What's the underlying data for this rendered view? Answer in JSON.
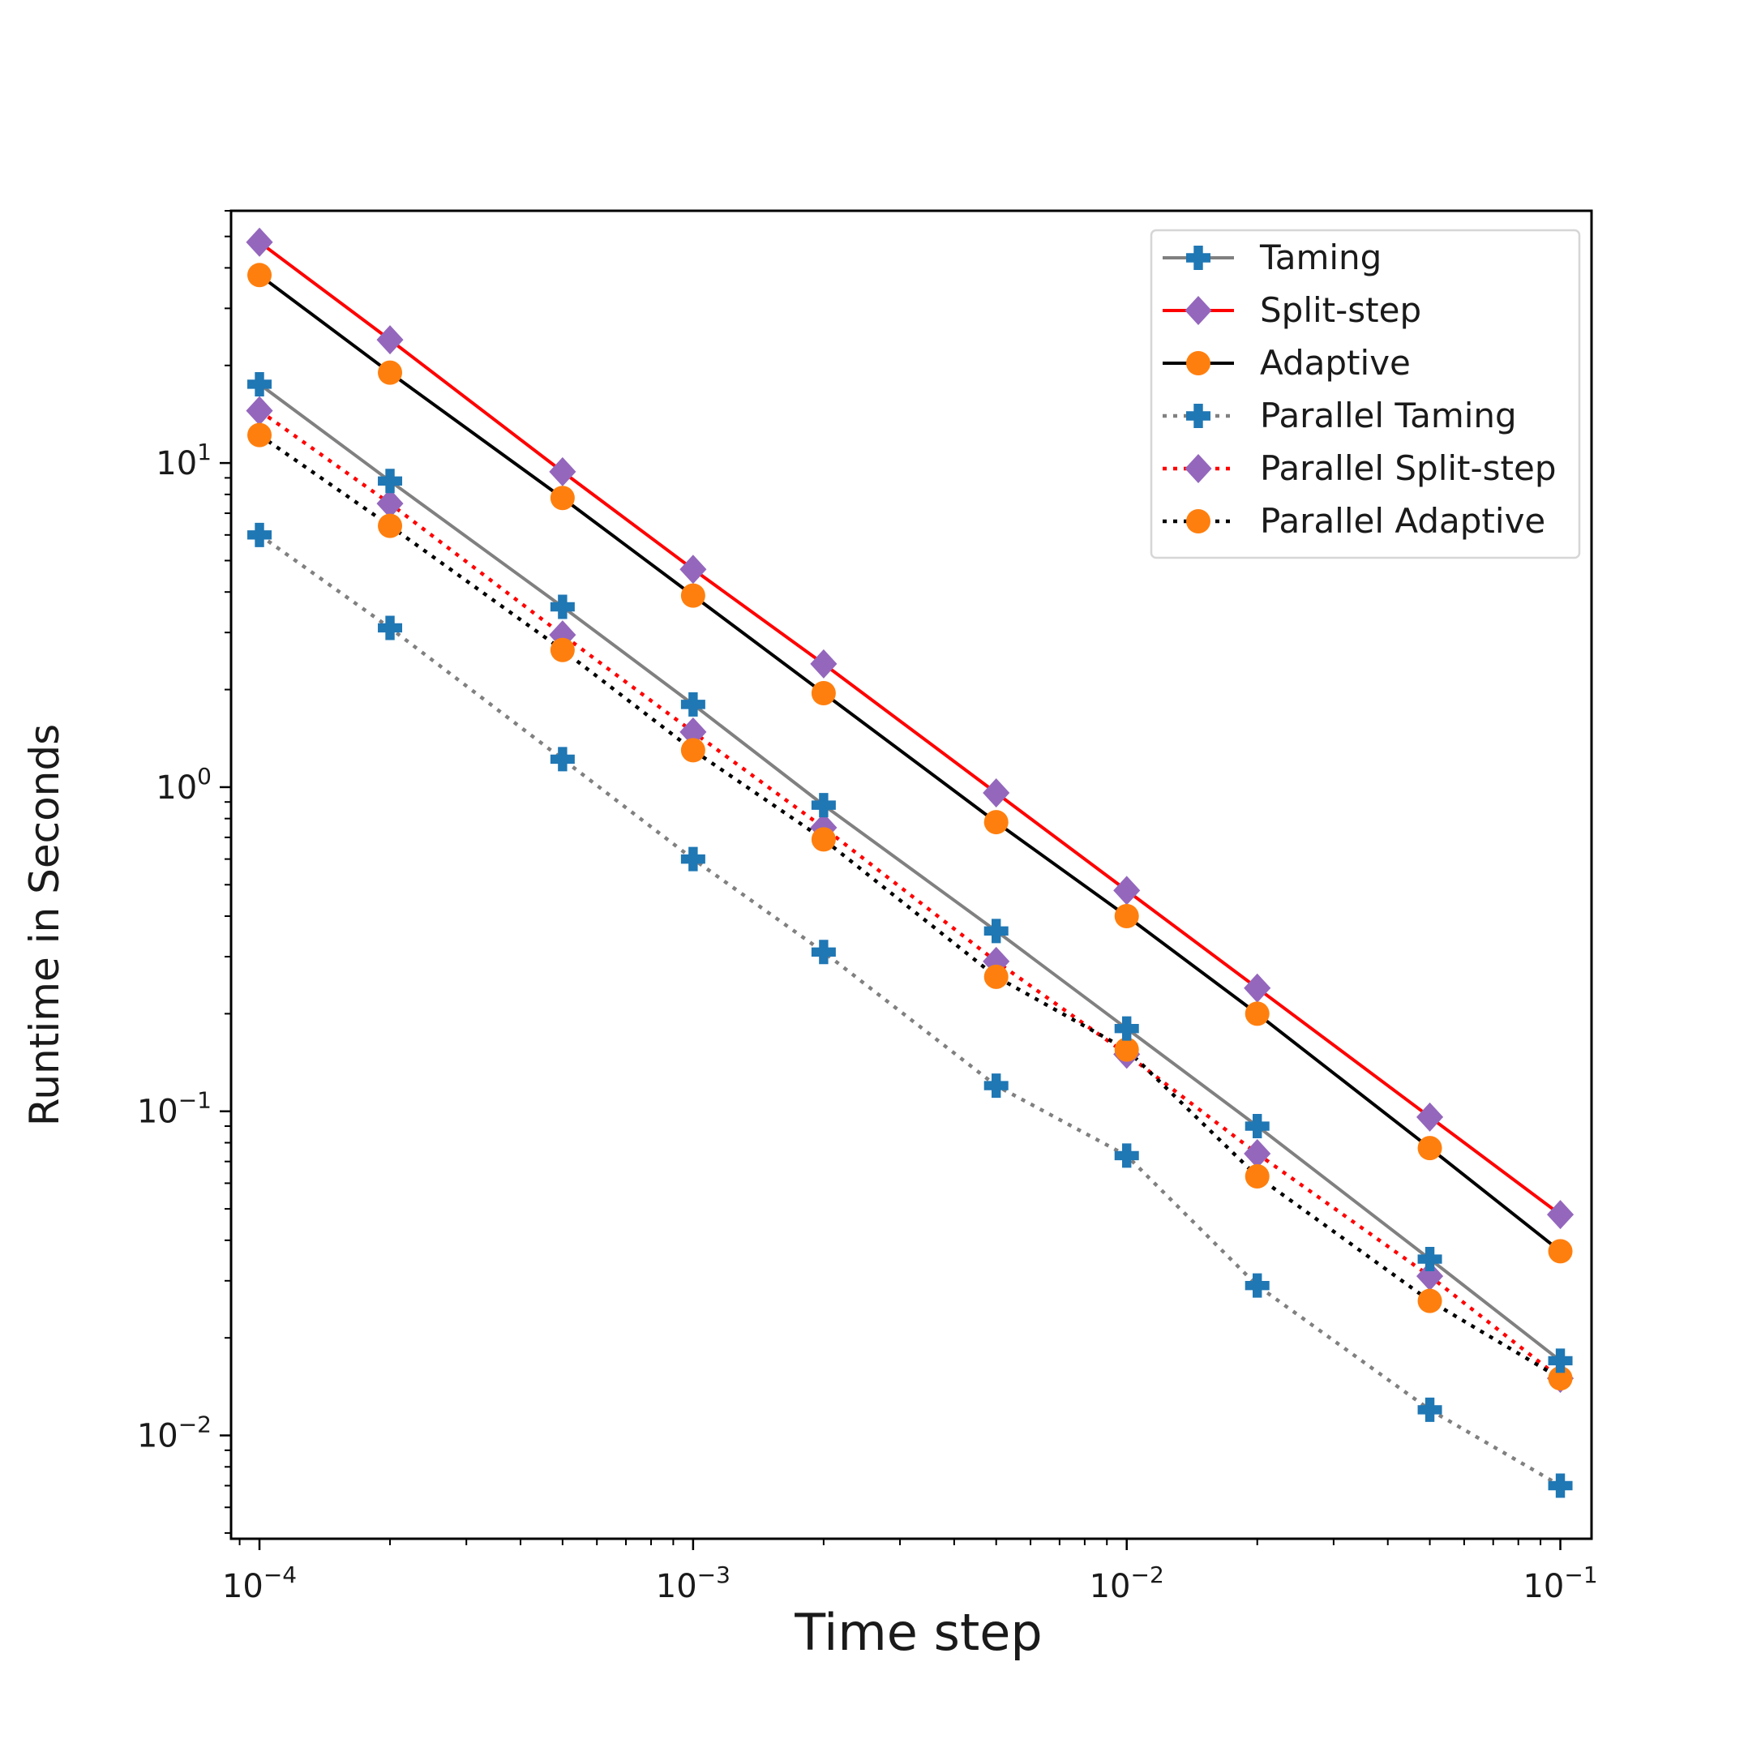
{
  "chart_data": {
    "type": "line",
    "xscale": "log",
    "yscale": "log",
    "xlim": [
      8.6e-05,
      0.118
    ],
    "ylim": [
      0.0048,
      60
    ],
    "xlabel": "Time step",
    "ylabel": "Runtime in Seconds",
    "x_ticks": [
      {
        "value": 0.0001,
        "base": "10",
        "exp": "−4"
      },
      {
        "value": 0.001,
        "base": "10",
        "exp": "−3"
      },
      {
        "value": 0.01,
        "base": "10",
        "exp": "−2"
      },
      {
        "value": 0.1,
        "base": "10",
        "exp": "−1"
      }
    ],
    "y_ticks": [
      {
        "value": 0.01,
        "base": "10",
        "exp": "−2"
      },
      {
        "value": 0.1,
        "base": "10",
        "exp": "−1"
      },
      {
        "value": 1,
        "base": "10",
        "exp": "0"
      },
      {
        "value": 10,
        "base": "10",
        "exp": "1"
      }
    ],
    "legend_position": "top-right",
    "grid": false,
    "x": [
      0.0001,
      0.0002,
      0.0005,
      0.001,
      0.002,
      0.005,
      0.01,
      0.02,
      0.05,
      0.1
    ],
    "series": [
      {
        "name": "Taming",
        "line_color": "#808080",
        "line_style": "solid",
        "marker": "plus",
        "marker_color": "#1f77b4",
        "values": [
          17.5,
          8.8,
          3.6,
          1.8,
          0.88,
          0.36,
          0.18,
          0.09,
          0.035,
          0.017
        ]
      },
      {
        "name": "Split-step",
        "line_color": "#ff0000",
        "line_style": "solid",
        "marker": "diamond",
        "marker_color": "#9467bd",
        "values": [
          48,
          24,
          9.4,
          4.7,
          2.4,
          0.96,
          0.48,
          0.24,
          0.096,
          0.048
        ]
      },
      {
        "name": "Adaptive",
        "line_color": "#000000",
        "line_style": "solid",
        "marker": "circle",
        "marker_color": "#ff7f0e",
        "values": [
          38,
          19,
          7.8,
          3.9,
          1.95,
          0.78,
          0.4,
          0.2,
          0.077,
          0.037
        ]
      },
      {
        "name": "Parallel Taming",
        "line_color": "#808080",
        "line_style": "dotted",
        "marker": "plus",
        "marker_color": "#1f77b4",
        "values": [
          6.0,
          3.1,
          1.22,
          0.6,
          0.31,
          0.12,
          0.073,
          0.029,
          0.012,
          0.007
        ]
      },
      {
        "name": "Parallel Split-step",
        "line_color": "#ff0000",
        "line_style": "dotted",
        "marker": "diamond",
        "marker_color": "#9467bd",
        "values": [
          14.5,
          7.5,
          2.95,
          1.48,
          0.75,
          0.29,
          0.15,
          0.074,
          0.031,
          0.015
        ]
      },
      {
        "name": "Parallel Adaptive",
        "line_color": "#000000",
        "line_style": "dotted",
        "marker": "circle",
        "marker_color": "#ff7f0e",
        "values": [
          12.2,
          6.4,
          2.65,
          1.3,
          0.69,
          0.26,
          0.155,
          0.063,
          0.026,
          0.015
        ]
      }
    ]
  }
}
